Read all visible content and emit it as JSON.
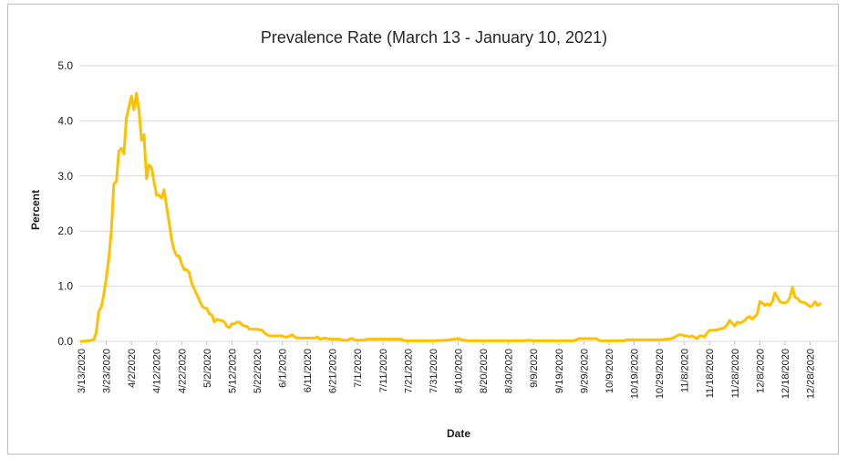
{
  "chart_data": {
    "type": "line",
    "title": "Prevalence Rate (March 13 - January 10, 2021)",
    "xlabel": "Date",
    "ylabel": "Percent",
    "ylim": [
      0,
      5
    ],
    "y_ticks": [
      "0.0",
      "1.0",
      "2.0",
      "3.0",
      "4.0",
      "5.0"
    ],
    "x_start": "2020-03-13",
    "x_end": "2021-01-03",
    "x_tick_labels": [
      "3/13/2020",
      "3/23/2020",
      "4/2/2020",
      "4/12/2020",
      "4/22/2020",
      "5/2/2020",
      "5/12/2020",
      "5/22/2020",
      "6/1/2020",
      "6/11/2020",
      "6/21/2020",
      "7/1/2020",
      "7/11/2020",
      "7/21/2020",
      "7/31/2020",
      "8/10/2020",
      "8/20/2020",
      "8/30/2020",
      "9/9/2020",
      "9/19/2020",
      "9/29/2020",
      "10/9/2020",
      "10/19/2020",
      "10/29/2020",
      "11/8/2020",
      "11/18/2020",
      "11/28/2020",
      "12/8/2020",
      "12/18/2020",
      "12/28/2020"
    ],
    "grid": "horizontal",
    "line_color": "#FFC000",
    "series": [
      {
        "points": [
          [
            "2020-03-13",
            0.0
          ],
          [
            "2020-03-16",
            0.01
          ],
          [
            "2020-03-18",
            0.03
          ],
          [
            "2020-03-19",
            0.15
          ],
          [
            "2020-03-20",
            0.55
          ],
          [
            "2020-03-21",
            0.62
          ],
          [
            "2020-03-22",
            0.85
          ],
          [
            "2020-03-23",
            1.15
          ],
          [
            "2020-03-24",
            1.5
          ],
          [
            "2020-03-25",
            2.0
          ],
          [
            "2020-03-26",
            2.85
          ],
          [
            "2020-03-27",
            2.9
          ],
          [
            "2020-03-28",
            3.45
          ],
          [
            "2020-03-29",
            3.5
          ],
          [
            "2020-03-30",
            3.4
          ],
          [
            "2020-03-31",
            4.05
          ],
          [
            "2020-04-01",
            4.25
          ],
          [
            "2020-04-02",
            4.45
          ],
          [
            "2020-04-03",
            4.2
          ],
          [
            "2020-04-04",
            4.5
          ],
          [
            "2020-04-05",
            4.2
          ],
          [
            "2020-04-06",
            3.65
          ],
          [
            "2020-04-07",
            3.75
          ],
          [
            "2020-04-08",
            2.95
          ],
          [
            "2020-04-09",
            3.2
          ],
          [
            "2020-04-10",
            3.15
          ],
          [
            "2020-04-11",
            2.9
          ],
          [
            "2020-04-12",
            2.65
          ],
          [
            "2020-04-13",
            2.65
          ],
          [
            "2020-04-14",
            2.6
          ],
          [
            "2020-04-15",
            2.75
          ],
          [
            "2020-04-16",
            2.45
          ],
          [
            "2020-04-17",
            2.15
          ],
          [
            "2020-04-18",
            1.85
          ],
          [
            "2020-04-19",
            1.65
          ],
          [
            "2020-04-20",
            1.55
          ],
          [
            "2020-04-21",
            1.55
          ],
          [
            "2020-04-22",
            1.4
          ],
          [
            "2020-04-23",
            1.3
          ],
          [
            "2020-04-24",
            1.3
          ],
          [
            "2020-04-25",
            1.25
          ],
          [
            "2020-04-26",
            1.05
          ],
          [
            "2020-04-27",
            0.95
          ],
          [
            "2020-04-28",
            0.85
          ],
          [
            "2020-04-29",
            0.75
          ],
          [
            "2020-04-30",
            0.65
          ],
          [
            "2020-05-01",
            0.6
          ],
          [
            "2020-05-02",
            0.6
          ],
          [
            "2020-05-03",
            0.5
          ],
          [
            "2020-05-04",
            0.48
          ],
          [
            "2020-05-05",
            0.35
          ],
          [
            "2020-05-06",
            0.4
          ],
          [
            "2020-05-07",
            0.38
          ],
          [
            "2020-05-08",
            0.38
          ],
          [
            "2020-05-09",
            0.35
          ],
          [
            "2020-05-10",
            0.27
          ],
          [
            "2020-05-11",
            0.25
          ],
          [
            "2020-05-12",
            0.32
          ],
          [
            "2020-05-13",
            0.32
          ],
          [
            "2020-05-14",
            0.35
          ],
          [
            "2020-05-15",
            0.35
          ],
          [
            "2020-05-16",
            0.3
          ],
          [
            "2020-05-17",
            0.28
          ],
          [
            "2020-05-18",
            0.27
          ],
          [
            "2020-05-19",
            0.22
          ],
          [
            "2020-05-20",
            0.22
          ],
          [
            "2020-05-21",
            0.22
          ],
          [
            "2020-05-22",
            0.22
          ],
          [
            "2020-05-24",
            0.2
          ],
          [
            "2020-05-25",
            0.15
          ],
          [
            "2020-05-26",
            0.12
          ],
          [
            "2020-05-27",
            0.1
          ],
          [
            "2020-05-28",
            0.1
          ],
          [
            "2020-06-01",
            0.1
          ],
          [
            "2020-06-02",
            0.08
          ],
          [
            "2020-06-03",
            0.08
          ],
          [
            "2020-06-04",
            0.1
          ],
          [
            "2020-06-05",
            0.12
          ],
          [
            "2020-06-06",
            0.08
          ],
          [
            "2020-06-07",
            0.06
          ],
          [
            "2020-06-08",
            0.06
          ],
          [
            "2020-06-11",
            0.06
          ],
          [
            "2020-06-14",
            0.06
          ],
          [
            "2020-06-15",
            0.08
          ],
          [
            "2020-06-16",
            0.04
          ],
          [
            "2020-06-18",
            0.06
          ],
          [
            "2020-06-20",
            0.04
          ],
          [
            "2020-06-24",
            0.04
          ],
          [
            "2020-06-25",
            0.02
          ],
          [
            "2020-06-27",
            0.02
          ],
          [
            "2020-06-28",
            0.05
          ],
          [
            "2020-06-29",
            0.05
          ],
          [
            "2020-06-30",
            0.02
          ],
          [
            "2020-07-03",
            0.02
          ],
          [
            "2020-07-05",
            0.04
          ],
          [
            "2020-07-08",
            0.04
          ],
          [
            "2020-07-15",
            0.04
          ],
          [
            "2020-07-18",
            0.04
          ],
          [
            "2020-07-20",
            0.01
          ],
          [
            "2020-07-31",
            0.01
          ],
          [
            "2020-08-05",
            0.02
          ],
          [
            "2020-08-08",
            0.04
          ],
          [
            "2020-08-10",
            0.05
          ],
          [
            "2020-08-12",
            0.02
          ],
          [
            "2020-08-14",
            0.01
          ],
          [
            "2020-09-05",
            0.01
          ],
          [
            "2020-09-07",
            0.02
          ],
          [
            "2020-09-09",
            0.01
          ],
          [
            "2020-09-25",
            0.01
          ],
          [
            "2020-09-26",
            0.03
          ],
          [
            "2020-09-27",
            0.05
          ],
          [
            "2020-10-04",
            0.05
          ],
          [
            "2020-10-05",
            0.02
          ],
          [
            "2020-10-06",
            0.01
          ],
          [
            "2020-10-15",
            0.01
          ],
          [
            "2020-10-16",
            0.03
          ],
          [
            "2020-10-30",
            0.03
          ],
          [
            "2020-11-01",
            0.04
          ],
          [
            "2020-11-03",
            0.05
          ],
          [
            "2020-11-05",
            0.1
          ],
          [
            "2020-11-06",
            0.12
          ],
          [
            "2020-11-07",
            0.12
          ],
          [
            "2020-11-08",
            0.1
          ],
          [
            "2020-11-09",
            0.1
          ],
          [
            "2020-11-10",
            0.08
          ],
          [
            "2020-11-11",
            0.1
          ],
          [
            "2020-11-12",
            0.08
          ],
          [
            "2020-11-13",
            0.05
          ],
          [
            "2020-11-14",
            0.1
          ],
          [
            "2020-11-15",
            0.1
          ],
          [
            "2020-11-16",
            0.08
          ],
          [
            "2020-11-17",
            0.15
          ],
          [
            "2020-11-18",
            0.2
          ],
          [
            "2020-11-20",
            0.2
          ],
          [
            "2020-11-22",
            0.22
          ],
          [
            "2020-11-24",
            0.25
          ],
          [
            "2020-11-25",
            0.3
          ],
          [
            "2020-11-26",
            0.38
          ],
          [
            "2020-11-27",
            0.33
          ],
          [
            "2020-11-28",
            0.28
          ],
          [
            "2020-11-29",
            0.35
          ],
          [
            "2020-11-30",
            0.33
          ],
          [
            "2020-12-01",
            0.35
          ],
          [
            "2020-12-02",
            0.38
          ],
          [
            "2020-12-03",
            0.43
          ],
          [
            "2020-12-04",
            0.45
          ],
          [
            "2020-12-05",
            0.4
          ],
          [
            "2020-12-06",
            0.45
          ],
          [
            "2020-12-07",
            0.5
          ],
          [
            "2020-12-08",
            0.72
          ],
          [
            "2020-12-09",
            0.7
          ],
          [
            "2020-12-10",
            0.65
          ],
          [
            "2020-12-11",
            0.68
          ],
          [
            "2020-12-12",
            0.65
          ],
          [
            "2020-12-13",
            0.72
          ],
          [
            "2020-12-14",
            0.88
          ],
          [
            "2020-12-15",
            0.8
          ],
          [
            "2020-12-16",
            0.72
          ],
          [
            "2020-12-17",
            0.7
          ],
          [
            "2020-12-18",
            0.7
          ],
          [
            "2020-12-19",
            0.72
          ],
          [
            "2020-12-20",
            0.8
          ],
          [
            "2020-12-21",
            0.98
          ],
          [
            "2020-12-22",
            0.8
          ],
          [
            "2020-12-23",
            0.78
          ],
          [
            "2020-12-24",
            0.72
          ],
          [
            "2020-12-26",
            0.7
          ],
          [
            "2020-12-28",
            0.63
          ],
          [
            "2020-12-29",
            0.65
          ],
          [
            "2020-12-30",
            0.72
          ],
          [
            "2020-12-31",
            0.65
          ],
          [
            "2021-01-01",
            0.68
          ]
        ]
      }
    ]
  }
}
